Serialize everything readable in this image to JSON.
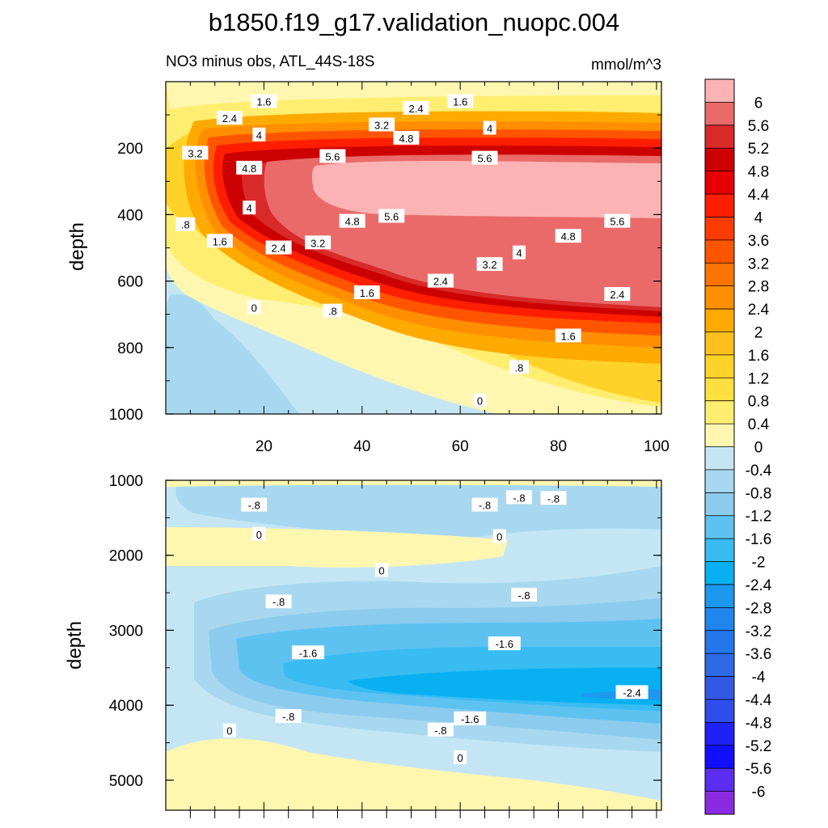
{
  "chart_data": {
    "title": "b1850.f19_g17.validation_nuopc.004",
    "subtitle_left": "NO3 minus obs, ATL_44S-18S",
    "units": "mmol/m^3",
    "type": "contour",
    "colorbar": {
      "levels": [
        "6",
        "5.6",
        "5.2",
        "4.8",
        "4.4",
        "4",
        "3.6",
        "3.2",
        "2.8",
        "2.4",
        "2",
        "1.6",
        "1.2",
        "0.8",
        "0.4",
        "0",
        "-0.4",
        "-0.8",
        "-1.2",
        "-1.6",
        "-2",
        "-2.4",
        "-2.8",
        "-3.2",
        "-3.6",
        "-4",
        "-4.4",
        "-4.8",
        "-5.2",
        "-5.6",
        "-6"
      ],
      "colors": [
        "#FCB3B3",
        "#EA6A6A",
        "#D92A2A",
        "#CC0000",
        "#E60000",
        "#FF1E00",
        "#FF3C00",
        "#FF5500",
        "#FF7300",
        "#FF8F00",
        "#FFAA00",
        "#FFC01F",
        "#FFD229",
        "#FFE040",
        "#FFEE70",
        "#FFF7B0",
        "#C4E6F4",
        "#A7D8EF",
        "#8CCBEE",
        "#5EC2F1",
        "#38BCF2",
        "#08B0F2",
        "#1C98EE",
        "#2086EE",
        "#2476EB",
        "#2E6AE6",
        "#3358E4",
        "#2E4DEB",
        "#1E22F5",
        "#1010FF",
        "#5A2DF0",
        "#8A2BE2"
      ]
    },
    "panels": [
      {
        "name": "upper",
        "ylabel": "depth",
        "xlim": [
          0,
          101
        ],
        "ylim": [
          0,
          1000
        ],
        "yreversed": true,
        "xticks": [
          "20",
          "40",
          "60",
          "80",
          "100"
        ],
        "yticks": [
          "200",
          "400",
          "600",
          "800",
          "1000"
        ],
        "contour_labels": [
          {
            "text": "1.6",
            "x": 20,
            "y": 60
          },
          {
            "text": "2.4",
            "x": 13,
            "y": 110
          },
          {
            "text": "3.2",
            "x": 6,
            "y": 215
          },
          {
            "text": "4",
            "x": 19,
            "y": 160
          },
          {
            "text": "5.6",
            "x": 34,
            "y": 225
          },
          {
            "text": "4.8",
            "x": 17,
            "y": 260
          },
          {
            "text": "3.2",
            "x": 44,
            "y": 130
          },
          {
            "text": "2.4",
            "x": 51,
            "y": 80
          },
          {
            "text": "1.6",
            "x": 60,
            "y": 60
          },
          {
            "text": "4.8",
            "x": 49,
            "y": 170
          },
          {
            "text": "4",
            "x": 66,
            "y": 140
          },
          {
            "text": "5.6",
            "x": 65,
            "y": 230
          },
          {
            "text": "4",
            "x": 17,
            "y": 380
          },
          {
            "text": "4.8",
            "x": 38,
            "y": 420
          },
          {
            "text": "5.6",
            "x": 46,
            "y": 405
          },
          {
            "text": ".8",
            "x": 4,
            "y": 430
          },
          {
            "text": "1.6",
            "x": 11,
            "y": 480
          },
          {
            "text": "2.4",
            "x": 23,
            "y": 500
          },
          {
            "text": "3.2",
            "x": 31,
            "y": 485
          },
          {
            "text": "4",
            "x": 72,
            "y": 515
          },
          {
            "text": "3.2",
            "x": 66,
            "y": 550
          },
          {
            "text": "4.8",
            "x": 82,
            "y": 465
          },
          {
            "text": "5.6",
            "x": 92,
            "y": 420
          },
          {
            "text": "2.4",
            "x": 56,
            "y": 600
          },
          {
            "text": "2.4",
            "x": 92,
            "y": 640
          },
          {
            "text": "1.6",
            "x": 41,
            "y": 635
          },
          {
            "text": ".8",
            "x": 34,
            "y": 690
          },
          {
            "text": "0",
            "x": 18,
            "y": 680
          },
          {
            "text": "1.6",
            "x": 82,
            "y": 765
          },
          {
            "text": ".8",
            "x": 72,
            "y": 860
          },
          {
            "text": "0",
            "x": 64,
            "y": 960
          }
        ]
      },
      {
        "name": "lower",
        "ylabel": "depth",
        "xlim": [
          0,
          101
        ],
        "ylim": [
          1000,
          5400
        ],
        "yreversed": true,
        "xticks": [],
        "yticks": [
          "1000",
          "2000",
          "3000",
          "4000",
          "5000"
        ],
        "contour_labels": [
          {
            "text": "-.8",
            "x": 18,
            "y": 1330
          },
          {
            "text": "-.8",
            "x": 65,
            "y": 1330
          },
          {
            "text": "-.8",
            "x": 72,
            "y": 1230
          },
          {
            "text": "-.8",
            "x": 79,
            "y": 1240
          },
          {
            "text": "0",
            "x": 19,
            "y": 1720
          },
          {
            "text": "0",
            "x": 68,
            "y": 1750
          },
          {
            "text": "0",
            "x": 44,
            "y": 2200
          },
          {
            "text": "-.8",
            "x": 23,
            "y": 2620
          },
          {
            "text": "-.8",
            "x": 73,
            "y": 2530
          },
          {
            "text": "-1.6",
            "x": 29,
            "y": 3300
          },
          {
            "text": "-1.6",
            "x": 69,
            "y": 3180
          },
          {
            "text": "-2.4",
            "x": 95,
            "y": 3830
          },
          {
            "text": "-.8",
            "x": 25,
            "y": 4150
          },
          {
            "text": "-1.6",
            "x": 62,
            "y": 4180
          },
          {
            "text": "-.8",
            "x": 56,
            "y": 4330
          },
          {
            "text": "0",
            "x": 13,
            "y": 4340
          },
          {
            "text": "0",
            "x": 60,
            "y": 4700
          }
        ]
      }
    ]
  }
}
